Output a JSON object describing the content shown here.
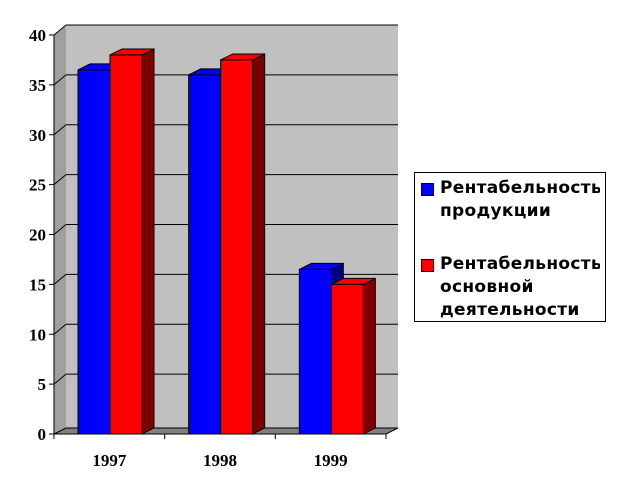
{
  "chart_data": {
    "type": "bar",
    "categories": [
      "1997",
      "1998",
      "1999"
    ],
    "series": [
      {
        "name": "Рентабельность\nпродукции",
        "color": "#0000FF",
        "side_color": "#00007A",
        "values": [
          36.5,
          36,
          16.5
        ]
      },
      {
        "name": "Рентабельность\nосновной\nдеятельности",
        "color": "#FF0000",
        "side_color": "#7A0000",
        "values": [
          38,
          37.5,
          15
        ]
      }
    ],
    "title": "",
    "xlabel": "",
    "ylabel": "",
    "ylim": [
      0,
      40
    ],
    "yticks": [
      0,
      5,
      10,
      15,
      20,
      25,
      30,
      35,
      40
    ],
    "grid": true,
    "legend_position": "right",
    "plot_background": "#C0C0C0"
  }
}
